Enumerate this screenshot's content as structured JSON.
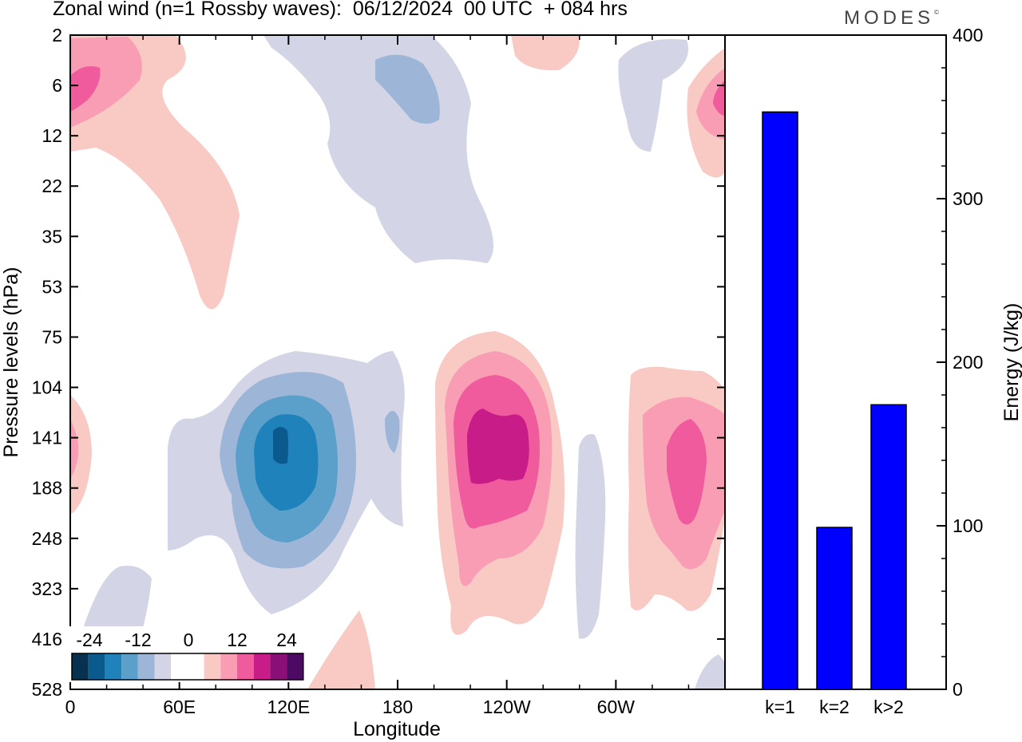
{
  "header": {
    "title": "Zonal wind (n=1 Rossby waves):  06/12/2024  00 UTC  + 084 hrs",
    "brand": "MODES"
  },
  "chart_data": [
    {
      "type": "heatmap",
      "title": "Zonal wind (n=1 Rossby waves):  06/12/2024  00 UTC  + 084 hrs",
      "xlabel": "Longitude",
      "ylabel": "Pressure levels (hPa)",
      "x_ticks": [
        "0",
        "60E",
        "120E",
        "180",
        "120W",
        "60W"
      ],
      "y_ticks": [
        "2",
        "6",
        "12",
        "22",
        "35",
        "53",
        "75",
        "104",
        "141",
        "188",
        "248",
        "323",
        "416",
        "528"
      ],
      "colorbar": {
        "labels": [
          "-24",
          "-12",
          "0",
          "12",
          "24"
        ],
        "colors": [
          "#08304f",
          "#0b5a8e",
          "#1f82ba",
          "#5b9fcb",
          "#9db6d8",
          "#d3d5e6",
          "#ffffff",
          "#ffffff",
          "#f9c9c3",
          "#f99db4",
          "#ef5b9c",
          "#c81d88",
          "#8a1077",
          "#4c0a63"
        ]
      },
      "cells": [
        {
          "level": "6",
          "lon": "0-10E",
          "sign": "positive",
          "magnitude": "strong"
        },
        {
          "level": "6",
          "lon": "180-165W",
          "sign": "negative",
          "magnitude": "moderate"
        },
        {
          "level": "6",
          "lon": "20W-0",
          "sign": "positive",
          "magnitude": "strong"
        },
        {
          "level": "141",
          "lon": "100E-120E",
          "sign": "negative",
          "magnitude": "very strong"
        },
        {
          "level": "141",
          "lon": "130W-110W",
          "sign": "positive",
          "magnitude": "very strong"
        },
        {
          "level": "141",
          "lon": "30W-10W",
          "sign": "positive",
          "magnitude": "strong"
        }
      ]
    },
    {
      "type": "bar",
      "categories": [
        "k=1",
        "k=2",
        "k>2"
      ],
      "values": [
        353,
        99,
        174
      ],
      "ylabel": "Energy (J/kg)",
      "ylim": [
        0,
        400
      ],
      "y_ticks": [
        "0",
        "100",
        "200",
        "300",
        "400"
      ],
      "bar_color": "#0000ff"
    }
  ]
}
